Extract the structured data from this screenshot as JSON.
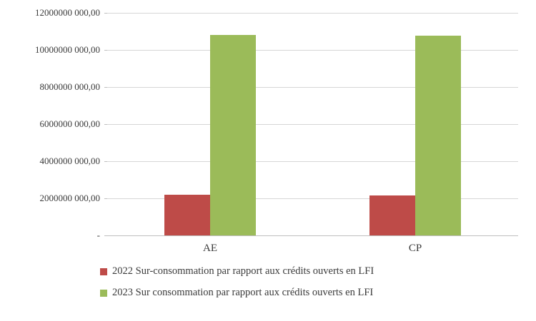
{
  "chart_data": {
    "type": "bar",
    "categories": [
      "AE",
      "CP"
    ],
    "series": [
      {
        "name": "2022 Sur-consommation par rapport aux crédits ouverts en LFI",
        "color": "#be4b48",
        "values": [
          2200000000,
          2150000000
        ]
      },
      {
        "name": "2023 Sur consommation par rapport aux crédits ouverts en LFI",
        "color": "#9bbb59",
        "values": [
          10800000000,
          10750000000
        ]
      }
    ],
    "title": "",
    "xlabel": "",
    "ylabel": "",
    "ylim": [
      0,
      12000000000
    ],
    "ytick_step": 2000000000,
    "ytick_labels_top_down": [
      "12000000 000,00",
      "10000000 000,00",
      "8000000 000,00",
      "6000000 000,00",
      "4000000 000,00",
      "2000000 000,00",
      "-"
    ],
    "grid": true,
    "legend_position": "bottom-left",
    "background": "#ffffff",
    "gridline_color": "#d6d6d6",
    "axis_color": "#bfbfbf",
    "text_color": "#3a3a3a"
  }
}
